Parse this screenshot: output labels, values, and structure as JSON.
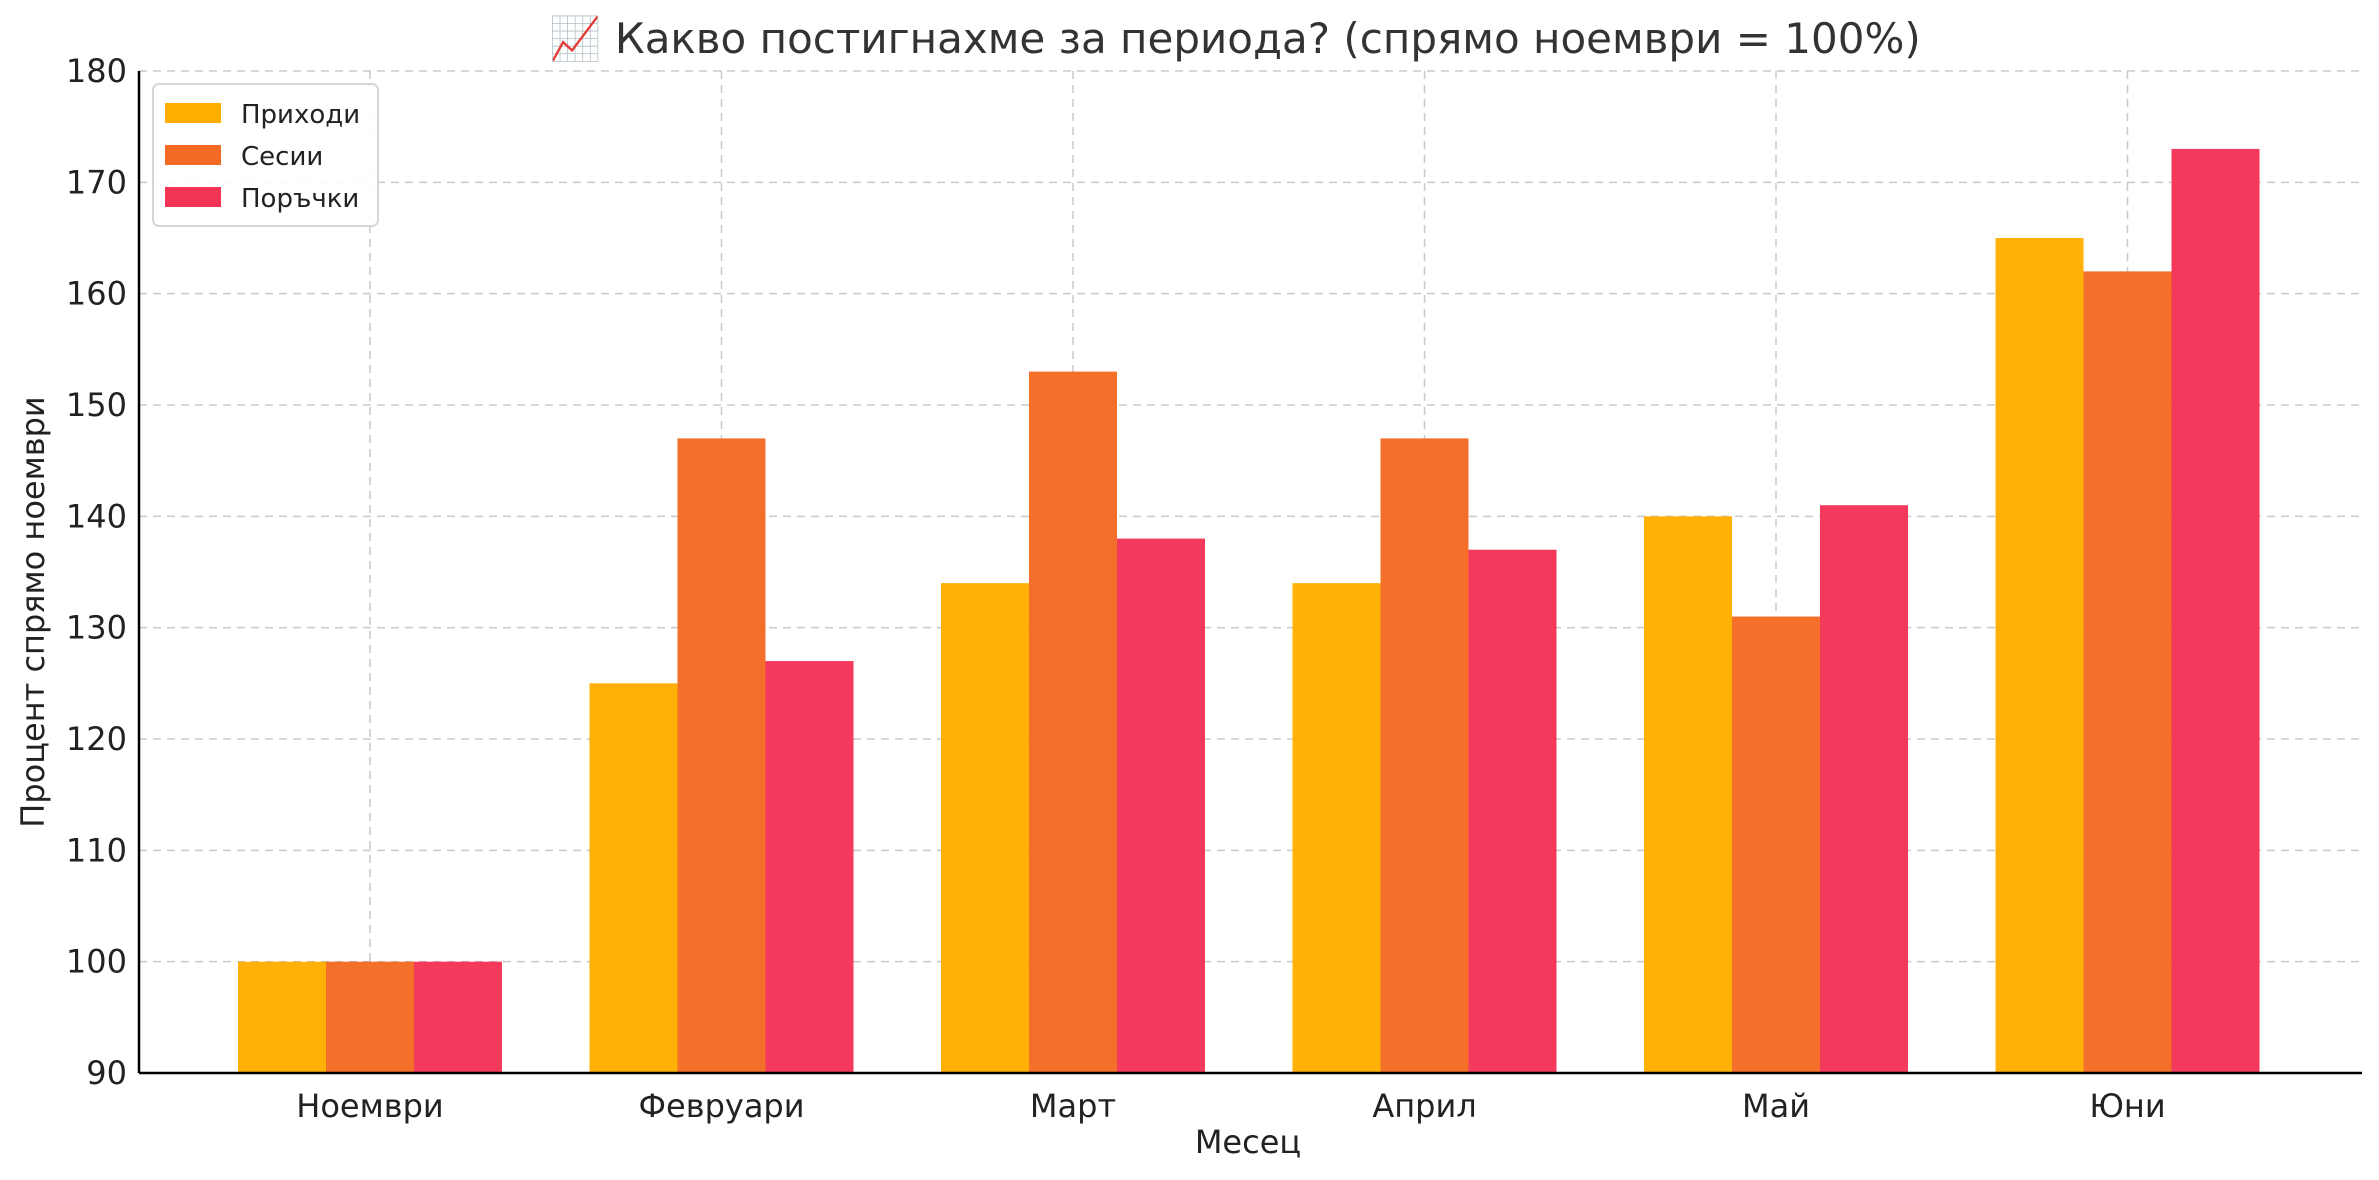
{
  "chart_data": {
    "type": "bar",
    "title": "📈 Какво постигнахме за периода? (спрямо ноември = 100%)",
    "xlabel": "Месец",
    "ylabel": "Процент спрямо ноември",
    "ylim": [
      90,
      180
    ],
    "yticks": [
      90,
      100,
      110,
      120,
      130,
      140,
      150,
      160,
      170,
      180
    ],
    "grid": true,
    "legend_position": "top-left",
    "categories": [
      "Ноември",
      "Февруари",
      "Март",
      "Април",
      "Май",
      "Юни"
    ],
    "series": [
      {
        "name": "Приходи",
        "color": "#FFAE00",
        "values": [
          100,
          125,
          134,
          134,
          140,
          165
        ]
      },
      {
        "name": "Сесии",
        "color": "#F46A22",
        "values": [
          100,
          147,
          153,
          147,
          131,
          162
        ]
      },
      {
        "name": "Поръчки",
        "color": "#F43457",
        "values": [
          100,
          127,
          138,
          137,
          141,
          173
        ]
      }
    ]
  }
}
